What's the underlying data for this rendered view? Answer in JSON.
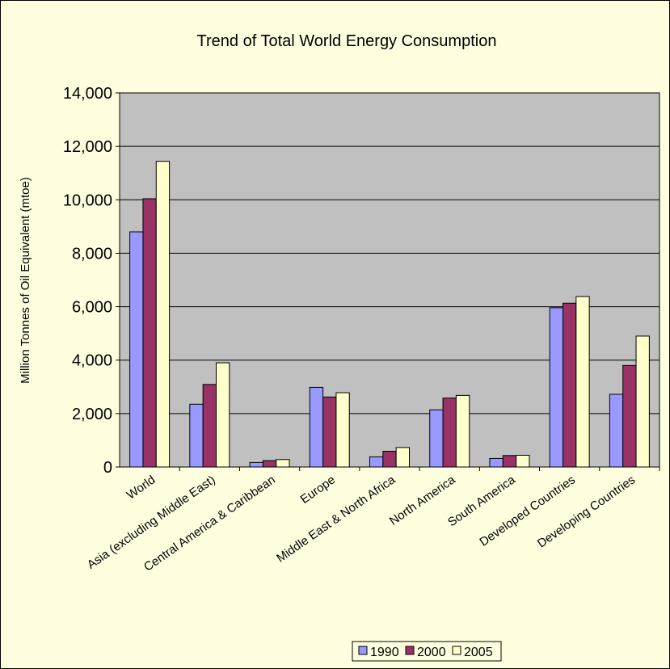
{
  "chart_data": {
    "type": "bar",
    "title": "Trend of Total World Energy Consumption",
    "xlabel": "",
    "ylabel": "Million Tonnes of Oil Equivalent (mtoe)",
    "ylim": [
      0,
      14000
    ],
    "yticks": [
      0,
      2000,
      4000,
      6000,
      8000,
      10000,
      12000,
      14000
    ],
    "ytick_labels": [
      "0",
      "2,000",
      "4,000",
      "6,000",
      "8,000",
      "10,000",
      "12,000",
      "14,000"
    ],
    "grid": true,
    "legend_position": "bottom",
    "plot_background": "#c0c0c0",
    "categories": [
      "World",
      "Asia (excluding Middle East)",
      "Central America & Caribbean",
      "Europe",
      "Middle East & North Africa",
      "North America",
      "South America",
      "Developed Countries",
      "Developing Countries"
    ],
    "series": [
      {
        "name": "1990",
        "color": "#9999ff",
        "values": [
          8800,
          2350,
          170,
          2980,
          380,
          2140,
          320,
          5960,
          2720
        ]
      },
      {
        "name": "2000",
        "color": "#993366",
        "values": [
          10040,
          3090,
          240,
          2620,
          590,
          2580,
          430,
          6130,
          3800
        ]
      },
      {
        "name": "2005",
        "color": "#ffffcc",
        "values": [
          11440,
          3900,
          280,
          2780,
          730,
          2680,
          440,
          6380,
          4900
        ]
      }
    ]
  }
}
